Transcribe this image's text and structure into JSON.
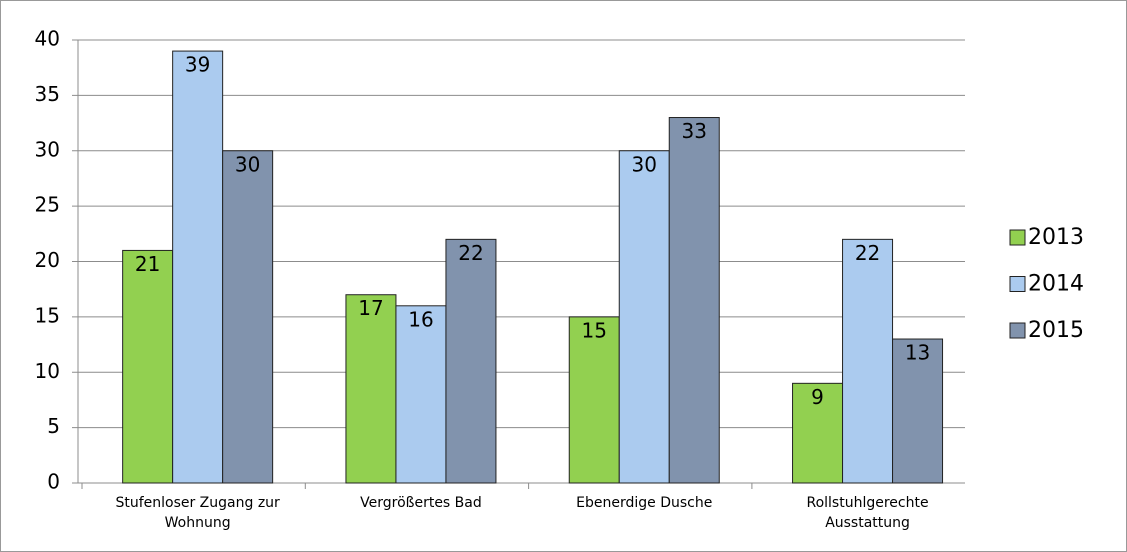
{
  "chart_data": {
    "type": "bar",
    "categories": [
      "Stufenloser Zugang zur Wohnung",
      "Vergrößertes Bad",
      "Ebenerdige Dusche",
      "Rollstuhlgerechte Ausstattung"
    ],
    "series": [
      {
        "name": "2013",
        "color": "#92d050",
        "values": [
          21,
          17,
          15,
          9
        ]
      },
      {
        "name": "2014",
        "color": "#abcbef",
        "values": [
          39,
          16,
          30,
          22
        ]
      },
      {
        "name": "2015",
        "color": "#8193ad",
        "values": [
          30,
          22,
          33,
          13
        ]
      }
    ],
    "ylim": [
      0,
      40
    ],
    "yticks": [
      0,
      5,
      10,
      15,
      20,
      25,
      30,
      35,
      40
    ],
    "grid": true,
    "legend": "right"
  }
}
